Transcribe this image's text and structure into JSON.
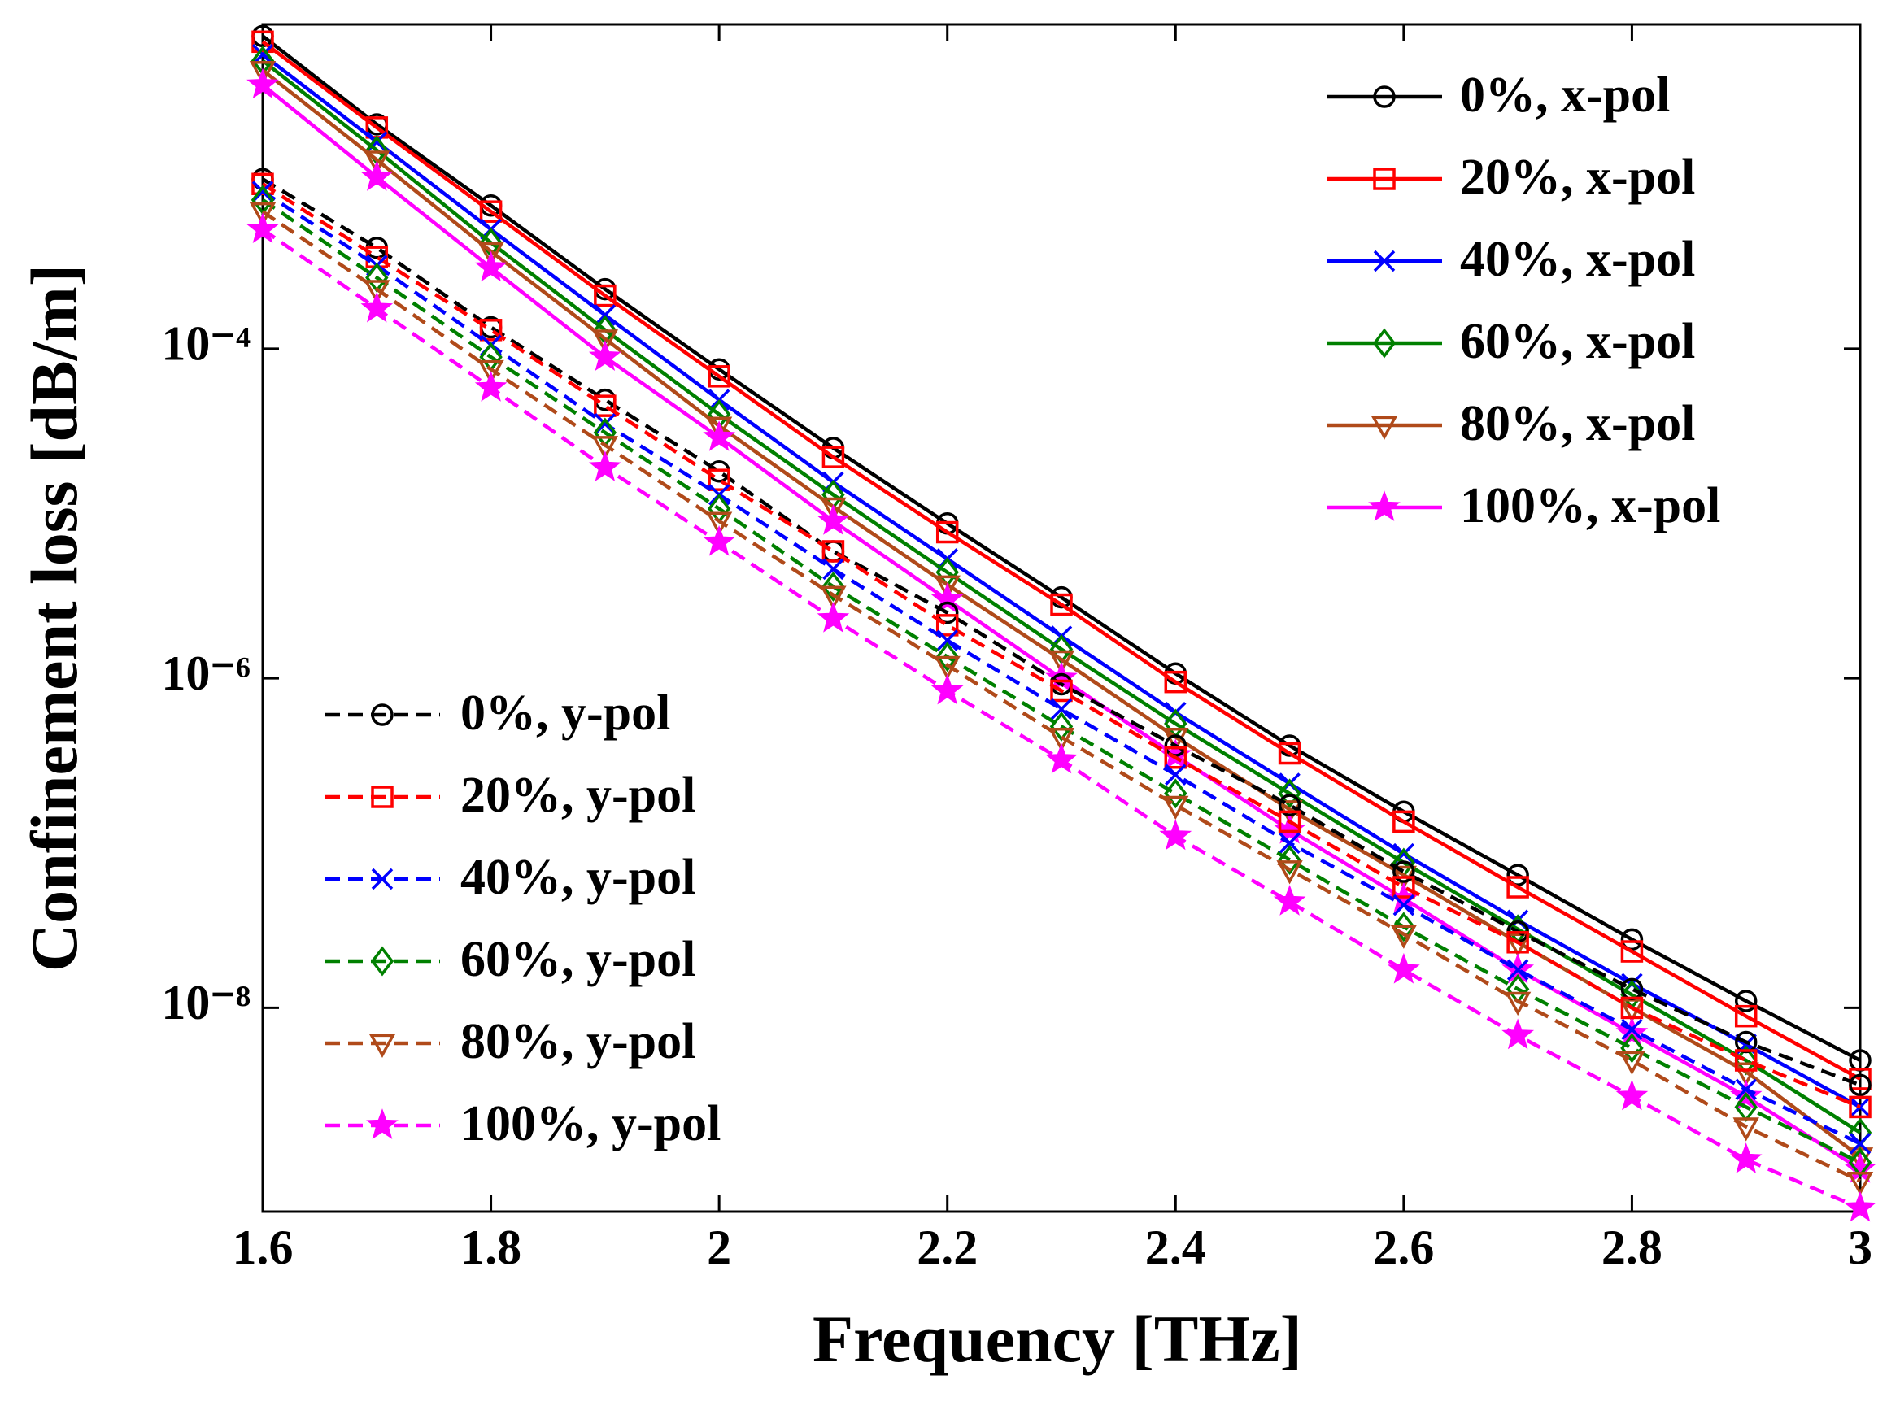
{
  "chart_data": {
    "type": "line",
    "log_y": true,
    "grid": false,
    "xlabel": "Frequency [THz]",
    "ylabel": "Confinement loss [dB/m]",
    "x": [
      1.6,
      1.7,
      1.8,
      1.9,
      2.0,
      2.1,
      2.2,
      2.3,
      2.4,
      2.5,
      2.6,
      2.7,
      2.8,
      2.9,
      3.0
    ],
    "xlim": [
      1.6,
      3
    ],
    "xticks": [
      1.6,
      1.8,
      2,
      2.2,
      2.4,
      2.6,
      2.8,
      3
    ],
    "ylim": [
      5.8e-10,
      0.0093
    ],
    "yticks": [
      {
        "value": 1e-08,
        "label": "10⁻⁸"
      },
      {
        "value": 1e-06,
        "label": "10⁻⁶"
      },
      {
        "value": 0.0001,
        "label": "10⁻⁴"
      }
    ],
    "series": [
      {
        "name": "0%, x-pol",
        "color": "#000000",
        "marker": "circle",
        "dash": false,
        "legend": "upper right",
        "values": [
          0.0079,
          0.0023,
          0.00074,
          0.00023,
          7.5e-05,
          2.5e-05,
          8.7e-06,
          3.1e-06,
          1.07e-06,
          3.9e-07,
          1.55e-07,
          6.4e-08,
          2.6e-08,
          1.1e-08,
          4.8e-09
        ]
      },
      {
        "name": "20%, x-pol",
        "color": "#ff0000",
        "marker": "square",
        "dash": false,
        "legend": "upper right",
        "values": [
          0.0073,
          0.0022,
          0.00068,
          0.00021,
          6.8e-05,
          2.2e-05,
          7.7e-06,
          2.8e-06,
          9.5e-07,
          3.5e-07,
          1.35e-07,
          5.4e-08,
          2.2e-08,
          8.9e-09,
          3.7e-09
        ]
      },
      {
        "name": "40%, x-pol",
        "color": "#0000ff",
        "marker": "x",
        "dash": false,
        "legend": "upper right",
        "values": [
          0.0061,
          0.0018,
          0.00053,
          0.00016,
          4.9e-05,
          1.55e-05,
          5.3e-06,
          1.8e-06,
          6.2e-07,
          2.3e-07,
          8.6e-08,
          3.4e-08,
          1.4e-08,
          6e-09,
          2.5e-09
        ]
      },
      {
        "name": "60%, x-pol",
        "color": "#008000",
        "marker": "diamond",
        "dash": false,
        "legend": "upper right",
        "values": [
          0.0056,
          0.0016,
          0.00044,
          0.00013,
          4e-05,
          1.3e-05,
          4.4e-06,
          1.5e-06,
          5.3e-07,
          2e-07,
          7.6e-08,
          3e-08,
          1.2e-08,
          4.8e-09,
          1.75e-09
        ]
      },
      {
        "name": "80%, x-pol",
        "color": "#b04a1a",
        "marker": "triangle-down",
        "dash": false,
        "legend": "upper right",
        "values": [
          0.0049,
          0.0014,
          0.00039,
          0.000115,
          3.4e-05,
          1.1e-05,
          3.7e-06,
          1.3e-06,
          4.4e-07,
          1.6e-07,
          6.4e-08,
          2.5e-08,
          1e-08,
          4.1e-09,
          1.25e-09
        ]
      },
      {
        "name": "100%, x-pol",
        "color": "#ff00ff",
        "marker": "star",
        "dash": false,
        "legend": "upper right",
        "values": [
          0.004,
          0.0011,
          0.00031,
          8.9e-05,
          2.9e-05,
          9e-06,
          3e-06,
          1e-06,
          3.4e-07,
          1.2e-07,
          4.6e-08,
          1.7e-08,
          7e-09,
          2.9e-09,
          1.05e-09
        ]
      },
      {
        "name": "0%, y-pol",
        "color": "#000000",
        "marker": "circle",
        "dash": true,
        "legend": "lower left",
        "values": [
          0.00107,
          0.00041,
          0.000135,
          4.9e-05,
          1.8e-05,
          5.9e-06,
          2.5e-06,
          9.2e-07,
          3.9e-07,
          1.7e-07,
          6.7e-08,
          2.9e-08,
          1.3e-08,
          6.2e-09,
          3.4e-09
        ]
      },
      {
        "name": "20%, y-pol",
        "color": "#ff0000",
        "marker": "square",
        "dash": true,
        "legend": "lower left",
        "values": [
          0.001,
          0.00036,
          0.00013,
          4.5e-05,
          1.6e-05,
          5.9e-06,
          2.1e-06,
          8.4e-07,
          3.3e-07,
          1.35e-07,
          5.4e-08,
          2.5e-08,
          1e-08,
          4.8e-09,
          2.5e-09
        ]
      },
      {
        "name": "40%, y-pol",
        "color": "#0000ff",
        "marker": "x",
        "dash": true,
        "legend": "lower left",
        "values": [
          0.0009,
          0.00032,
          0.000105,
          3.5e-05,
          1.3e-05,
          4.6e-06,
          1.7e-06,
          6.5e-07,
          2.6e-07,
          1e-07,
          4.2e-08,
          1.7e-08,
          7.4e-09,
          3.2e-09,
          1.5e-09
        ]
      },
      {
        "name": "60%, y-pol",
        "color": "#008000",
        "marker": "diamond",
        "dash": true,
        "legend": "lower left",
        "values": [
          0.0008,
          0.00027,
          8.9e-05,
          3.1e-05,
          1.07e-05,
          3.6e-06,
          1.35e-06,
          5.1e-07,
          2e-07,
          7.9e-08,
          3.1e-08,
          1.3e-08,
          5.7e-09,
          2.5e-09,
          1.15e-09
        ]
      },
      {
        "name": "80%, y-pol",
        "color": "#b04a1a",
        "marker": "triangle-down",
        "dash": true,
        "legend": "lower left",
        "values": [
          0.00068,
          0.00023,
          7.5e-05,
          2.6e-05,
          9e-06,
          3.2e-06,
          1.2e-06,
          4.4e-07,
          1.7e-07,
          6.9e-08,
          2.8e-08,
          1.1e-08,
          4.8e-09,
          1.9e-09,
          8.9e-10
        ]
      },
      {
        "name": "100%, y-pol",
        "color": "#ff00ff",
        "marker": "star",
        "dash": true,
        "legend": "lower left",
        "values": [
          0.00053,
          0.000175,
          5.8e-05,
          1.9e-05,
          6.7e-06,
          2.3e-06,
          8.4e-07,
          3.2e-07,
          1.1e-07,
          4.4e-08,
          1.7e-08,
          6.8e-09,
          2.9e-09,
          1.2e-09,
          6.1e-10
        ]
      }
    ]
  }
}
